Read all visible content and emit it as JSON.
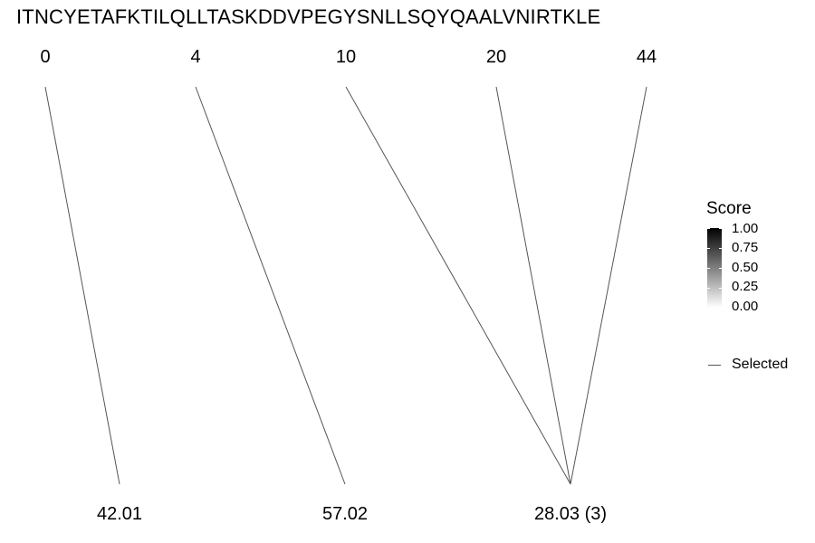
{
  "sequence": "ITNCYETAFKTILQLLTASKDDVPEGYSNLLSQYQAALVNIRTKLE",
  "top_labels": [
    "0",
    "4",
    "10",
    "20",
    "44"
  ],
  "bottom_labels": [
    "42.01",
    "57.02",
    "28.03 (3)"
  ],
  "links": [
    {
      "from": "0",
      "to": "42.01"
    },
    {
      "from": "4",
      "to": "57.02"
    },
    {
      "from": "10",
      "to": "28.03 (3)"
    },
    {
      "from": "20",
      "to": "28.03 (3)"
    },
    {
      "from": "44",
      "to": "28.03 (3)"
    }
  ],
  "legend": {
    "title": "Score",
    "ticks": [
      "1.00",
      "0.75",
      "0.50",
      "0.25",
      "0.00"
    ],
    "selected_label": "Selected"
  },
  "colors": {
    "line": "#555555",
    "scale_high": "#000000",
    "scale_low": "#ffffff"
  }
}
